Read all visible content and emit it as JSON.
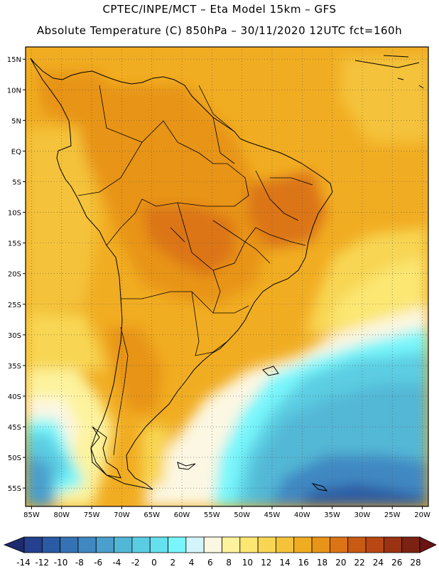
{
  "header": {
    "line1": "CPTEC/INPE/MCT –  Eta Model 15km – GFS",
    "line2": "Absolute Temperature (C) 850hPa – 30/11/2020 12UTC fct=160h"
  },
  "map": {
    "lon_range": [
      -86,
      -19
    ],
    "lat_range": [
      -58,
      17
    ],
    "lat_labels": [
      "15N",
      "10N",
      "5N",
      "EQ",
      "5S",
      "10S",
      "15S",
      "20S",
      "25S",
      "30S",
      "35S",
      "40S",
      "45S",
      "50S",
      "55S"
    ],
    "lat_values": [
      15,
      10,
      5,
      0,
      -5,
      -10,
      -15,
      -20,
      -25,
      -30,
      -35,
      -40,
      -45,
      -50,
      -55
    ],
    "lon_labels": [
      "85W",
      "80W",
      "75W",
      "70W",
      "65W",
      "60W",
      "55W",
      "50W",
      "45W",
      "40W",
      "35W",
      "30W",
      "25W",
      "20W"
    ],
    "lon_values": [
      -85,
      -80,
      -75,
      -70,
      -65,
      -60,
      -55,
      -50,
      -45,
      -40,
      -35,
      -30,
      -25,
      -20
    ]
  },
  "colorbar": {
    "labels": [
      "-14",
      "-12",
      "-10",
      "-8",
      "-6",
      "-4",
      "-2",
      "0",
      "2",
      "4",
      "6",
      "8",
      "10",
      "12",
      "14",
      "16",
      "18",
      "20",
      "22",
      "24",
      "26",
      "28"
    ],
    "colors": [
      "#24408e",
      "#2a5aa3",
      "#3572b3",
      "#3f88c2",
      "#4a9fcc",
      "#52b7d6",
      "#5bcde2",
      "#66e0ee",
      "#78f6fb",
      "#d4f4fb",
      "#fcf7e2",
      "#fdf39e",
      "#fbe772",
      "#f8d653",
      "#f4c33b",
      "#f1ad22",
      "#e89418",
      "#dc7415",
      "#c95a13",
      "#b84713",
      "#9b3312",
      "#7c2213"
    ],
    "under_color": "#1e2a6e",
    "over_color": "#6a1414"
  }
}
